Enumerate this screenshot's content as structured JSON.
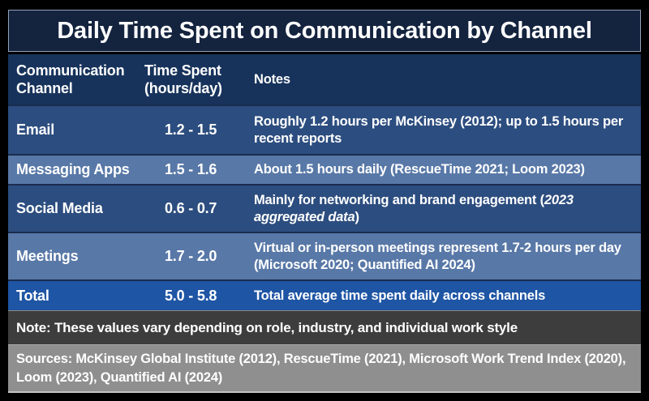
{
  "title": "Daily Time Spent on Communication by Channel",
  "table": {
    "headers": {
      "channel": "Communication Channel",
      "time": "Time Spent (hours/day)",
      "notes": "Notes"
    },
    "rows": [
      {
        "channel": "Email",
        "time": "1.2 - 1.5",
        "note": "Roughly 1.2 hours per McKinsey (2012); up to 1.5 hours per recent reports"
      },
      {
        "channel": "Messaging Apps",
        "time": "1.5 - 1.6",
        "note": "About 1.5 hours daily (RescueTime 2021; Loom 2023)"
      },
      {
        "channel": "Social Media",
        "time": "0.6 - 0.7",
        "note": "Mainly for networking and brand engagement (",
        "note_italic": "2023 aggregated data",
        "note_suffix": ")"
      },
      {
        "channel": "Meetings",
        "time": "1.7 - 2.0",
        "note": "Virtual or in-person meetings represent 1.7-2 hours per day (Microsoft 2020; Quantified AI 2024)"
      },
      {
        "channel": "Total",
        "time": "5.0 - 5.8",
        "note": "Total average time spent daily across channels"
      }
    ]
  },
  "footnote": "Note: These values vary depending on role, industry, and individual work style",
  "sources": "Sources: McKinsey Global Institute (2012), RescueTime (2021), Microsoft Work Trend Index (2020), Loom (2023), Quantified AI (2024)",
  "colors": {
    "frame": "#000000",
    "title_bg": "#14233E",
    "title_border": "#94A2B6",
    "header_bg": "#17335B",
    "row_dark": "#2C4D7F",
    "row_light": "#5878A7",
    "row_total": "#1E55A4",
    "note_bg": "#3D3D3D",
    "sources_bg": "#8F8F8F",
    "text": "#FFFFFF"
  },
  "chart_data": {
    "type": "table",
    "title": "Daily Time Spent on Communication by Channel",
    "columns": [
      "Communication Channel",
      "Time Spent (hours/day)",
      "Notes"
    ],
    "rows": [
      [
        "Email",
        "1.2 - 1.5",
        "Roughly 1.2 hours per McKinsey (2012); up to 1.5 hours per recent reports"
      ],
      [
        "Messaging Apps",
        "1.5 - 1.6",
        "About 1.5 hours daily (RescueTime 2021; Loom 2023)"
      ],
      [
        "Social Media",
        "0.6 - 0.7",
        "Mainly for networking and brand engagement (2023 aggregated data)"
      ],
      [
        "Meetings",
        "1.7 - 2.0",
        "Virtual or in-person meetings represent 1.7-2 hours per day (Microsoft 2020; Quantified AI 2024)"
      ],
      [
        "Total",
        "5.0 - 5.8",
        "Total average time spent daily across channels"
      ]
    ],
    "time_ranges_hours": {
      "Email": [
        1.2,
        1.5
      ],
      "Messaging Apps": [
        1.5,
        1.6
      ],
      "Social Media": [
        0.6,
        0.7
      ],
      "Meetings": [
        1.7,
        2.0
      ],
      "Total": [
        5.0,
        5.8
      ]
    },
    "footnote": "Note: These values vary depending on role, industry, and individual work style",
    "sources": "Sources: McKinsey Global Institute (2012), RescueTime (2021), Microsoft Work Trend Index (2020), Loom (2023), Quantified AI (2024)"
  }
}
